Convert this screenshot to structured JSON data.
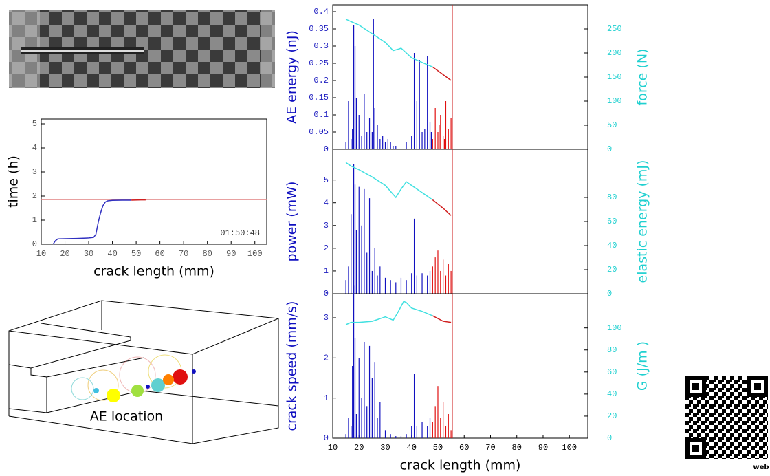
{
  "chart_data": [
    {
      "type": "line",
      "xlabel": "crack length (mm)",
      "ylabel": "time (h)",
      "annotation": "01:50:48",
      "xlim": [
        10,
        105
      ],
      "ylim": [
        0,
        5.2
      ],
      "xticks": [
        10,
        20,
        30,
        40,
        50,
        60,
        70,
        80,
        90,
        100
      ],
      "yticks": [
        0,
        1,
        2,
        3,
        4,
        5
      ],
      "hline": 1.85,
      "hline_color": "#e08080",
      "series": [
        {
          "color": "#3030c0",
          "x": [
            15,
            16,
            17,
            20,
            25,
            30,
            32,
            33,
            34,
            35,
            36,
            37,
            38,
            40,
            44,
            48
          ],
          "values": [
            0,
            0.15,
            0.22,
            0.23,
            0.24,
            0.26,
            0.28,
            0.4,
            0.9,
            1.3,
            1.6,
            1.75,
            1.8,
            1.82,
            1.83,
            1.83
          ]
        },
        {
          "color": "#d02020",
          "x": [
            48,
            52,
            54
          ],
          "values": [
            1.83,
            1.84,
            1.84
          ]
        }
      ]
    },
    {
      "type": "combo",
      "ylabel": "AE energy (nJ)",
      "y2label": "force (N)",
      "xlim": [
        10,
        107
      ],
      "ylim": [
        0,
        0.42
      ],
      "y2lim": [
        0,
        300
      ],
      "yticks": [
        0,
        0.05,
        0.1,
        0.15,
        0.2,
        0.25,
        0.3,
        0.35,
        0.4
      ],
      "y2ticks": [
        0,
        50,
        100,
        150,
        200,
        250
      ],
      "vline": 55.5,
      "series": [
        {
          "type": "stem",
          "color": "#1010c0",
          "x": [
            15,
            16,
            17,
            17.5,
            18,
            18.5,
            19,
            20,
            21,
            22,
            23,
            24,
            25,
            25.5,
            26,
            27,
            28,
            29,
            30,
            31,
            32,
            33,
            34,
            38,
            40,
            41,
            42,
            43,
            44,
            45,
            46,
            47,
            47.5
          ],
          "values": [
            0.02,
            0.14,
            0.03,
            0.06,
            0.36,
            0.3,
            0.15,
            0.1,
            0.04,
            0.16,
            0.05,
            0.09,
            0.05,
            0.38,
            0.12,
            0.07,
            0.03,
            0.04,
            0.02,
            0.03,
            0.02,
            0.01,
            0.01,
            0.02,
            0.04,
            0.28,
            0.14,
            0.26,
            0.05,
            0.06,
            0.27,
            0.08,
            0.05
          ]
        },
        {
          "type": "stem",
          "color": "#e01010",
          "x": [
            48,
            49,
            50,
            50.5,
            51,
            52,
            52.5,
            53,
            54,
            55
          ],
          "values": [
            0.03,
            0.12,
            0.05,
            0.07,
            0.1,
            0.04,
            0.03,
            0.14,
            0.06,
            0.09
          ]
        },
        {
          "type": "line",
          "axis": "y2",
          "color": "#40e0e0",
          "x": [
            15,
            20,
            25,
            30,
            33,
            35,
            36,
            38,
            40,
            45,
            48
          ],
          "values": [
            270,
            258,
            240,
            222,
            205,
            208,
            210,
            200,
            190,
            178,
            171
          ]
        },
        {
          "type": "line",
          "axis": "y2",
          "color": "#d02020",
          "x": [
            48,
            52,
            55
          ],
          "values": [
            171,
            155,
            143
          ]
        }
      ]
    },
    {
      "type": "combo",
      "ylabel": "power (mW)",
      "y2label": "elastic energy (mJ)",
      "xlim": [
        10,
        107
      ],
      "ylim": [
        0,
        6.35
      ],
      "y2lim": [
        0,
        120
      ],
      "yticks": [
        0,
        1,
        2,
        3,
        4,
        5
      ],
      "y2ticks": [
        0,
        20,
        40,
        60,
        80
      ],
      "vline": 55.5,
      "series": [
        {
          "type": "stem",
          "color": "#1010c0",
          "x": [
            15,
            16,
            17,
            18,
            18.5,
            19,
            20,
            21,
            22,
            23,
            24,
            25,
            26,
            27,
            28,
            30,
            32,
            34,
            36,
            38,
            40,
            41,
            42,
            44,
            46,
            47
          ],
          "values": [
            0.6,
            1.2,
            3.5,
            5.7,
            4.8,
            2.8,
            4.7,
            3.0,
            4.6,
            1.8,
            4.2,
            1.0,
            2.0,
            0.8,
            1.2,
            0.7,
            0.6,
            0.5,
            0.7,
            0.6,
            0.9,
            3.3,
            0.8,
            0.9,
            0.8,
            1.0
          ]
        },
        {
          "type": "stem",
          "color": "#e01010",
          "x": [
            48,
            49,
            50,
            51,
            52,
            53,
            54,
            55
          ],
          "values": [
            1.2,
            1.6,
            1.9,
            1.0,
            1.5,
            0.8,
            1.3,
            1.0
          ]
        },
        {
          "type": "line",
          "axis": "y2",
          "color": "#40e0e0",
          "x": [
            15,
            17,
            20,
            25,
            30,
            34,
            36,
            38,
            40,
            44,
            48
          ],
          "values": [
            109,
            106,
            103,
            97,
            90,
            80,
            87,
            93,
            90,
            84,
            78
          ]
        },
        {
          "type": "line",
          "axis": "y2",
          "color": "#d02020",
          "x": [
            48,
            52,
            55
          ],
          "values": [
            78,
            71,
            65
          ]
        }
      ]
    },
    {
      "type": "combo",
      "xlabel": "crack length (mm)",
      "ylabel": "crack speed (mm/s)",
      "y2label": "G (J/m )",
      "xlim": [
        10,
        107
      ],
      "ylim": [
        0,
        3.6
      ],
      "y2lim": [
        0,
        131
      ],
      "xticks": [
        10,
        20,
        30,
        40,
        50,
        60,
        70,
        80,
        90,
        100
      ],
      "yticks": [
        0,
        1,
        2,
        3
      ],
      "y2ticks": [
        0,
        20,
        40,
        60,
        80,
        100
      ],
      "vline": 55.5,
      "series": [
        {
          "type": "stem",
          "color": "#1010c0",
          "x": [
            15,
            16,
            17,
            17.5,
            18,
            18.5,
            19,
            20,
            21,
            22,
            23,
            24,
            25,
            26,
            27,
            28,
            30,
            32,
            34,
            36,
            38,
            40,
            41,
            42,
            44,
            46,
            47
          ],
          "values": [
            0.1,
            0.5,
            0.3,
            1.8,
            3.8,
            2.5,
            0.6,
            2.0,
            1.0,
            2.4,
            0.8,
            2.3,
            1.5,
            1.9,
            0.5,
            0.9,
            0.2,
            0.1,
            0.05,
            0.05,
            0.1,
            0.3,
            1.6,
            0.3,
            0.4,
            0.3,
            0.5
          ]
        },
        {
          "type": "stem",
          "color": "#e01010",
          "x": [
            48,
            49,
            50,
            51,
            52,
            53,
            54,
            55
          ],
          "values": [
            0.4,
            0.8,
            1.3,
            0.5,
            0.9,
            0.3,
            0.6,
            0.2
          ]
        },
        {
          "type": "line",
          "axis": "y2",
          "color": "#40e0e0",
          "x": [
            15,
            17,
            20,
            25,
            30,
            33,
            35,
            37,
            38,
            40,
            44,
            48
          ],
          "values": [
            103,
            105,
            105,
            106,
            110,
            107,
            115,
            124,
            123,
            118,
            115,
            111
          ]
        },
        {
          "type": "line",
          "axis": "y2",
          "color": "#d02020",
          "x": [
            48,
            52,
            55
          ],
          "values": [
            111,
            106,
            105
          ]
        }
      ]
    }
  ],
  "ae_location": {
    "label": "AE location"
  },
  "qr": {
    "label": "web"
  }
}
